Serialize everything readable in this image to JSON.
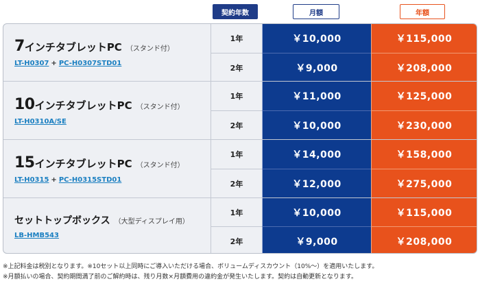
{
  "header": {
    "contract_years": "契約年数",
    "monthly": "月額",
    "annual": "年額"
  },
  "products": [
    {
      "num": "7",
      "name": "インチタブレットPC",
      "sub": "（スタンド付）",
      "code1": "LT-H0307",
      "plus": "+",
      "code2": "PC-H0307STD01",
      "rows": [
        {
          "years": "1年",
          "monthly": "￥10,000",
          "annual": "￥115,000"
        },
        {
          "years": "2年",
          "monthly": "￥9,000",
          "annual": "￥208,000"
        }
      ]
    },
    {
      "num": "10",
      "name": "インチタブレットPC",
      "sub": "（スタンド付）",
      "code1": "LT-H0310A/SE",
      "plus": "",
      "code2": "",
      "rows": [
        {
          "years": "1年",
          "monthly": "￥11,000",
          "annual": "￥125,000"
        },
        {
          "years": "2年",
          "monthly": "￥10,000",
          "annual": "￥230,000"
        }
      ]
    },
    {
      "num": "15",
      "name": "インチタブレットPC",
      "sub": "（スタンド付）",
      "code1": "LT-H0315",
      "plus": "+",
      "code2": "PC-H0315STD01",
      "rows": [
        {
          "years": "1年",
          "monthly": "￥14,000",
          "annual": "￥158,000"
        },
        {
          "years": "2年",
          "monthly": "￥12,000",
          "annual": "￥275,000"
        }
      ]
    },
    {
      "num": "",
      "name": "セットトップボックス",
      "sub": "（大型ディスプレイ用）",
      "code1": "LB-HMB543",
      "plus": "",
      "code2": "",
      "rows": [
        {
          "years": "1年",
          "monthly": "￥10,000",
          "annual": "￥115,000"
        },
        {
          "years": "2年",
          "monthly": "￥9,000",
          "annual": "￥208,000"
        }
      ]
    }
  ],
  "notes": [
    "※上記料金は税別となります。※10セット以上同時にご導入いただける場合、ボリュームディスカウント（10%〜）を適用いたします。",
    "※月額払いの場合、契約期間満了前のご解約時は、残り月数×月額費用の違約金が発生いたします。契約は自動更新となります。"
  ],
  "colors": {
    "monthly_bg": "#0d3b8f",
    "annual_bg": "#e8521c",
    "link": "#1a7fc1"
  }
}
